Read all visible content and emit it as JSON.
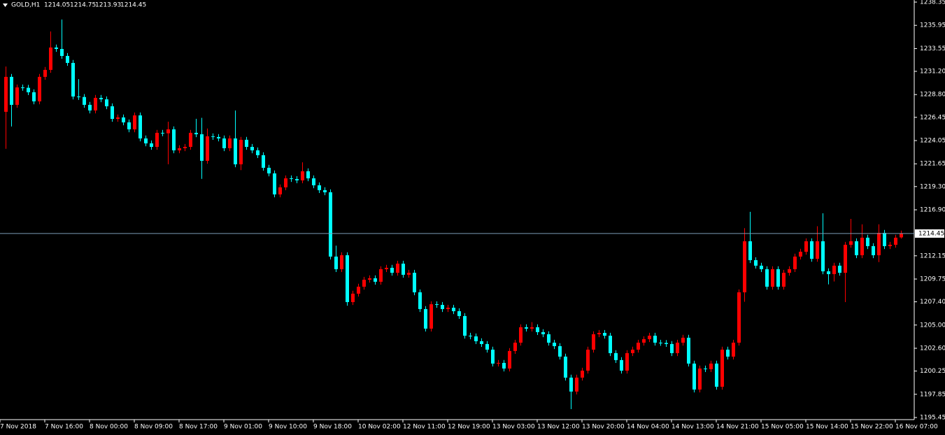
{
  "chart_data": {
    "type": "candlestick",
    "title": "GOLD,H1",
    "up_color": "#ff0000",
    "down_color": "#00ffff",
    "axis_color": "#ffffff",
    "price_line_color": "#7a9bb5",
    "grid": false,
    "ylim": [
      1195.45,
      1238.35
    ],
    "yticks": [
      1238.35,
      1235.95,
      1233.55,
      {
        "value": 1231.2,
        "label": "1231.20"
      },
      {
        "value": 1228.8,
        "label": "1228.80"
      },
      1226.45,
      1224.05,
      1221.65,
      {
        "value": 1219.3,
        "label": "1219.30"
      },
      {
        "value": 1216.9,
        "label": "1216.90"
      },
      1212.15,
      1209.75,
      {
        "value": 1207.4,
        "label": "1207.40"
      },
      {
        "value": 1205,
        "label": "1205.00"
      },
      {
        "value": 1202.6,
        "label": "1202.60"
      },
      1200.25,
      1197.85,
      1195.45
    ],
    "categories": [
      "7 Nov 2018",
      null,
      null,
      null,
      null,
      null,
      null,
      null,
      "7 Nov 16:00",
      null,
      null,
      null,
      null,
      null,
      null,
      null,
      "8 Nov 00:00",
      null,
      null,
      null,
      null,
      null,
      null,
      null,
      "8 Nov 09:00",
      null,
      null,
      null,
      null,
      null,
      null,
      null,
      "8 Nov 17:00",
      null,
      null,
      null,
      null,
      null,
      null,
      null,
      "9 Nov 01:00",
      null,
      null,
      null,
      null,
      null,
      null,
      null,
      "9 Nov 10:00",
      null,
      null,
      null,
      null,
      null,
      null,
      null,
      "9 Nov 18:00",
      null,
      null,
      null,
      null,
      null,
      null,
      null,
      "10 Nov 02:00",
      null,
      null,
      null,
      null,
      null,
      null,
      null,
      "12 Nov 11:00",
      null,
      null,
      null,
      null,
      null,
      null,
      null,
      "12 Nov 19:00",
      null,
      null,
      null,
      null,
      null,
      null,
      null,
      "13 Nov 03:00",
      null,
      null,
      null,
      null,
      null,
      null,
      null,
      "13 Nov 12:00",
      null,
      null,
      null,
      null,
      null,
      null,
      null,
      "13 Nov 20:00",
      null,
      null,
      null,
      null,
      null,
      null,
      null,
      "14 Nov 04:00",
      null,
      null,
      null,
      null,
      null,
      null,
      null,
      "14 Nov 13:00",
      null,
      null,
      null,
      null,
      null,
      null,
      null,
      "14 Nov 21:00",
      null,
      null,
      null,
      null,
      null,
      null,
      null,
      "15 Nov 05:00",
      null,
      null,
      null,
      null,
      null,
      null,
      null,
      "15 Nov 14:00",
      null,
      null,
      null,
      null,
      null,
      null,
      null,
      "15 Nov 22:00",
      null,
      null,
      null,
      null,
      null,
      null,
      null,
      "16 Nov 07:00"
    ],
    "open": [
      1227.02,
      1230.63,
      1227.74,
      1229.54,
      1229.5,
      1229.04,
      1228.1,
      1230.63,
      1231.35,
      1233.66,
      1233.51,
      1232.79,
      1232.07,
      1228.6,
      1228.55,
      1227.74,
      1227.16,
      1228.46,
      1228.31,
      1227.59,
      1226.29,
      1226.44,
      1225.93,
      1225.21,
      1226.65,
      1224.27,
      1223.76,
      1223.4,
      1224.85,
      1224.8,
      1225.21,
      1223.04,
      1223.26,
      1223.4,
      1224.85,
      1224.7,
      1221.96,
      1224.49,
      1224.42,
      1224.27,
      1223.26,
      1224.27,
      1221.6,
      1224.13,
      1223.4,
      1223.04,
      1222.54,
      1221.24,
      1220.66,
      1218.49,
      1219.22,
      1220.15,
      1220.08,
      1219.94,
      1220.88,
      1220.15,
      1219.43,
      1218.93,
      1218.71,
      1212.07,
      1210.77,
      1212.21,
      1207.37,
      1208.24,
      1208.96,
      1209.68,
      1209.83,
      1209.47,
      1210.77,
      1210.91,
      1210.4,
      1211.34,
      1210.19,
      1210.4,
      1208.38,
      1206.65,
      1204.63,
      1207.15,
      1207.08,
      1206.65,
      1206.79,
      1206.43,
      1205.93,
      1203.9,
      1203.83,
      1203.33,
      1203.04,
      1202.46,
      1201.02,
      1201.09,
      1200.51,
      1202.32,
      1203.18,
      1204.77,
      1204.63,
      1204.77,
      1204.27,
      1204.05,
      1203.18,
      1202.82,
      1201.74,
      1199.57,
      1198.13,
      1199.57,
      1200.29,
      1202.46,
      1204.05,
      1204.19,
      1203.9,
      1202.1,
      1201.38,
      1200.29,
      1202.1,
      1202.46,
      1203.18,
      1203.54,
      1203.9,
      1203.18,
      1203.15,
      1203.04,
      1202.1,
      1203.18,
      1203.69,
      1201.02,
      1198.34,
      1200.51,
      1200.44,
      1201.02,
      1198.63,
      1202.46,
      1201.74,
      1203.18,
      1208.38,
      1213.65,
      1211.7,
      1211.13,
      1210.77,
      1208.96,
      1210.77,
      1208.96,
      1210.4,
      1210.77,
      1212.07,
      1212.57,
      1213.65,
      1211.84,
      1213.65,
      1210.55,
      1210.26,
      1211.13,
      1210.4,
      1213.29,
      1213.65,
      1212.21,
      1214.02,
      1213.15,
      1212.21,
      1214.52,
      1213.15,
      1213.29,
      1214.05
    ],
    "high": [
      1231.7,
      1230.93,
      1229.84,
      1229.84,
      1229.8,
      1229.34,
      1230.93,
      1231.65,
      1235.32,
      1233.96,
      1236.55,
      1233.09,
      1232.37,
      1230.4,
      1228.85,
      1228.04,
      1228.76,
      1228.76,
      1228.61,
      1227.89,
      1226.74,
      1226.74,
      1226.23,
      1226.95,
      1226.95,
      1224.57,
      1224.06,
      1225.15,
      1225.15,
      1226.0,
      1225.51,
      1223.56,
      1223.7,
      1225.15,
      1226.3,
      1226.4,
      1225.3,
      1224.79,
      1224.72,
      1224.57,
      1224.57,
      1227.16,
      1224.43,
      1224.43,
      1223.7,
      1223.34,
      1222.84,
      1221.54,
      1220.96,
      1219.52,
      1220.45,
      1220.45,
      1220.38,
      1221.8,
      1221.18,
      1220.45,
      1219.73,
      1219.23,
      1219.01,
      1213.2,
      1212.51,
      1212.51,
      1208.54,
      1209.26,
      1209.98,
      1210.13,
      1210.13,
      1211.07,
      1211.21,
      1211.21,
      1211.64,
      1211.64,
      1210.7,
      1210.7,
      1208.68,
      1206.95,
      1207.45,
      1207.45,
      1207.38,
      1207.09,
      1207.09,
      1206.73,
      1206.23,
      1204.2,
      1204.13,
      1203.63,
      1203.34,
      1202.76,
      1201.39,
      1201.39,
      1202.62,
      1203.48,
      1205.07,
      1205.07,
      1205.3,
      1205.07,
      1204.57,
      1204.35,
      1203.48,
      1203.12,
      1202.04,
      1199.87,
      1199.87,
      1200.59,
      1202.76,
      1204.35,
      1204.49,
      1204.49,
      1204.2,
      1202.4,
      1201.68,
      1202.4,
      1202.76,
      1203.48,
      1203.84,
      1204.2,
      1204.2,
      1203.48,
      1203.45,
      1203.34,
      1203.48,
      1203.99,
      1203.99,
      1201.32,
      1200.81,
      1200.81,
      1201.32,
      1201.32,
      1202.76,
      1202.76,
      1203.48,
      1208.68,
      1215.0,
      1216.69,
      1212.0,
      1211.43,
      1211.07,
      1211.07,
      1211.07,
      1210.7,
      1211.07,
      1212.37,
      1212.87,
      1213.95,
      1213.95,
      1215.2,
      1216.54,
      1210.85,
      1211.43,
      1211.43,
      1213.59,
      1215.96,
      1213.95,
      1215.4,
      1214.32,
      1213.45,
      1215.4,
      1214.82,
      1213.59,
      1214.32,
      1214.75
    ],
    "low": [
      1223.2,
      1225.5,
      1227.44,
      1229.2,
      1228.74,
      1227.8,
      1227.8,
      1230.33,
      1231.05,
      1233.21,
      1232.49,
      1231.77,
      1228.3,
      1228.25,
      1227.44,
      1226.86,
      1226.86,
      1228.01,
      1227.29,
      1225.99,
      1225.99,
      1225.63,
      1224.91,
      1224.91,
      1223.97,
      1223.46,
      1223.1,
      1223.1,
      1224.5,
      1221.6,
      1222.74,
      1222.74,
      1222.96,
      1223.1,
      1224.4,
      1220.1,
      1221.66,
      1224.12,
      1223.97,
      1222.96,
      1222.96,
      1221.3,
      1221.0,
      1223.1,
      1222.74,
      1222.24,
      1220.94,
      1220.36,
      1218.19,
      1218.19,
      1218.92,
      1219.78,
      1219.64,
      1219.64,
      1219.85,
      1219.13,
      1218.63,
      1218.41,
      1211.77,
      1210.47,
      1210.47,
      1207.0,
      1207.07,
      1207.94,
      1208.66,
      1209.38,
      1209.17,
      1209.17,
      1210.47,
      1210.1,
      1210.1,
      1209.89,
      1209.89,
      1208.08,
      1206.35,
      1204.33,
      1204.33,
      1206.78,
      1206.35,
      1206.35,
      1206.13,
      1205.63,
      1203.6,
      1203.53,
      1203.03,
      1202.74,
      1202.16,
      1200.72,
      1200.72,
      1200.21,
      1200.21,
      1202.02,
      1202.88,
      1204.33,
      1204.33,
      1203.97,
      1203.75,
      1202.88,
      1202.52,
      1201.44,
      1199.27,
      1196.32,
      1197.83,
      1199.27,
      1199.99,
      1202.16,
      1203.75,
      1203.6,
      1201.8,
      1201.08,
      1199.99,
      1199.99,
      1201.8,
      1202.16,
      1202.88,
      1203.24,
      1202.88,
      1202.85,
      1202.74,
      1201.8,
      1201.8,
      1202.88,
      1200.72,
      1198.04,
      1198.04,
      1200.14,
      1200.14,
      1198.33,
      1198.33,
      1201.44,
      1201.44,
      1202.88,
      1207.4,
      1211.4,
      1210.83,
      1210.47,
      1208.66,
      1208.66,
      1208.66,
      1208.66,
      1210.1,
      1210.47,
      1211.77,
      1212.27,
      1211.54,
      1211.54,
      1210.25,
      1209.2,
      1209.5,
      1210.1,
      1207.37,
      1212.99,
      1211.91,
      1211.91,
      1212.85,
      1211.91,
      1211.5,
      1212.85,
      1212.85,
      1212.99,
      1213.93
    ],
    "close": [
      1230.63,
      1227.74,
      1229.54,
      1229.5,
      1229.04,
      1228.1,
      1230.63,
      1231.35,
      1233.66,
      1233.51,
      1232.79,
      1232.07,
      1228.6,
      1228.55,
      1227.74,
      1227.16,
      1228.46,
      1228.31,
      1227.59,
      1226.29,
      1226.44,
      1225.93,
      1225.21,
      1226.65,
      1224.27,
      1223.76,
      1223.4,
      1224.85,
      1224.8,
      1225.21,
      1223.04,
      1223.26,
      1223.4,
      1224.85,
      1224.7,
      1221.96,
      1224.49,
      1224.42,
      1224.27,
      1223.26,
      1224.27,
      1221.6,
      1224.13,
      1223.4,
      1223.04,
      1222.54,
      1221.24,
      1220.66,
      1218.49,
      1219.22,
      1220.15,
      1220.08,
      1219.94,
      1220.88,
      1220.15,
      1219.43,
      1218.93,
      1218.71,
      1212.07,
      1210.77,
      1212.21,
      1207.37,
      1208.24,
      1208.96,
      1209.68,
      1209.83,
      1209.47,
      1210.77,
      1210.91,
      1210.4,
      1211.34,
      1210.19,
      1210.4,
      1208.38,
      1206.65,
      1204.63,
      1207.15,
      1207.08,
      1206.65,
      1206.79,
      1206.43,
      1205.93,
      1203.9,
      1203.83,
      1203.33,
      1203.04,
      1202.46,
      1201.02,
      1201.09,
      1200.51,
      1202.32,
      1203.18,
      1204.77,
      1204.63,
      1204.77,
      1204.27,
      1204.05,
      1203.18,
      1202.82,
      1201.74,
      1199.57,
      1198.13,
      1199.57,
      1200.29,
      1202.46,
      1204.05,
      1204.19,
      1203.9,
      1202.1,
      1201.38,
      1200.29,
      1202.1,
      1202.46,
      1203.18,
      1203.54,
      1203.9,
      1203.18,
      1203.15,
      1203.04,
      1202.1,
      1203.18,
      1203.69,
      1201.02,
      1198.34,
      1200.51,
      1200.44,
      1201.02,
      1198.63,
      1202.46,
      1201.74,
      1203.18,
      1208.38,
      1213.65,
      1211.7,
      1211.13,
      1210.77,
      1208.96,
      1210.77,
      1208.96,
      1210.4,
      1210.77,
      1212.07,
      1212.57,
      1213.65,
      1211.84,
      1213.65,
      1210.55,
      1210.26,
      1211.13,
      1210.4,
      1213.29,
      1213.65,
      1212.21,
      1214.02,
      1213.15,
      1212.21,
      1214.52,
      1213.15,
      1213.29,
      1214.02,
      1214.45
    ]
  }
}
